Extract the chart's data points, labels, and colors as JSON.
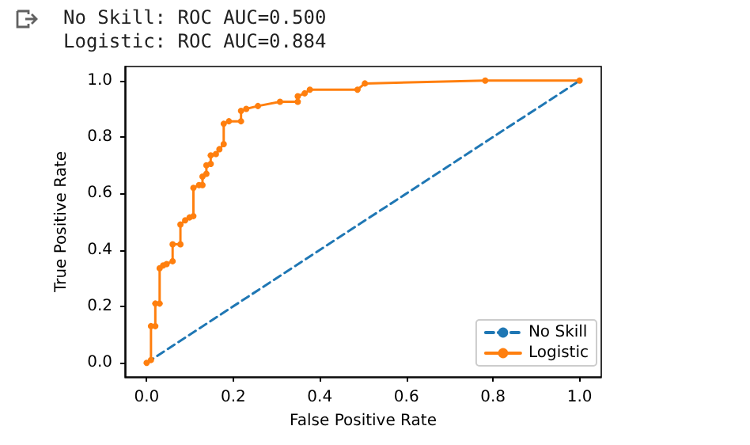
{
  "chart_data": {
    "type": "line",
    "xlabel": "False Positive Rate",
    "ylabel": "True Positive Rate",
    "annotations": [
      "No Skill: ROC AUC=0.500",
      "Logistic: ROC AUC=0.884"
    ],
    "xlim": [
      -0.05,
      1.05
    ],
    "ylim": [
      -0.05,
      1.05
    ],
    "xticks": [
      {
        "value": 0,
        "label": "0.0"
      },
      {
        "value": 0.2,
        "label": "0.2"
      },
      {
        "value": 0.4,
        "label": "0.4"
      },
      {
        "value": 0.6,
        "label": "0.6"
      },
      {
        "value": 0.8,
        "label": "0.8"
      },
      {
        "value": 1,
        "label": "1.0"
      }
    ],
    "yticks": [
      {
        "value": 0,
        "label": "0.0"
      },
      {
        "value": 0.2,
        "label": "0.2"
      },
      {
        "value": 0.4,
        "label": "0.4"
      },
      {
        "value": 0.6,
        "label": "0.6"
      },
      {
        "value": 0.8,
        "label": "0.8"
      },
      {
        "value": 1,
        "label": "1.0"
      }
    ],
    "grid": false,
    "legend": "bottom right",
    "series": [
      {
        "name": "No Skill",
        "color": "#1f77b4",
        "line_style": "dashed",
        "marker": "none",
        "x": [
          0,
          1
        ],
        "values": [
          0,
          1
        ]
      },
      {
        "name": "Logistic",
        "color": "#ff7f0e",
        "line_style": "solid",
        "marker": "circle",
        "x": [
          0,
          0.01,
          0.01,
          0.02,
          0.02,
          0.03,
          0.03,
          0.038,
          0.046,
          0.06,
          0.06,
          0.078,
          0.078,
          0.089,
          0.099,
          0.108,
          0.108,
          0.121,
          0.129,
          0.129,
          0.138,
          0.138,
          0.148,
          0.148,
          0.16,
          0.168,
          0.178,
          0.178,
          0.19,
          0.218,
          0.218,
          0.23,
          0.257,
          0.308,
          0.349,
          0.349,
          0.365,
          0.377,
          0.487,
          0.504,
          0.782,
          1
        ],
        "values": [
          0,
          0.01,
          0.13,
          0.13,
          0.21,
          0.21,
          0.335,
          0.345,
          0.35,
          0.36,
          0.42,
          0.42,
          0.49,
          0.505,
          0.515,
          0.52,
          0.62,
          0.63,
          0.63,
          0.66,
          0.67,
          0.7,
          0.705,
          0.735,
          0.74,
          0.757,
          0.775,
          0.847,
          0.856,
          0.856,
          0.893,
          0.9,
          0.91,
          0.925,
          0.925,
          0.945,
          0.955,
          0.968,
          0.968,
          0.99,
          1,
          1
        ]
      }
    ]
  }
}
